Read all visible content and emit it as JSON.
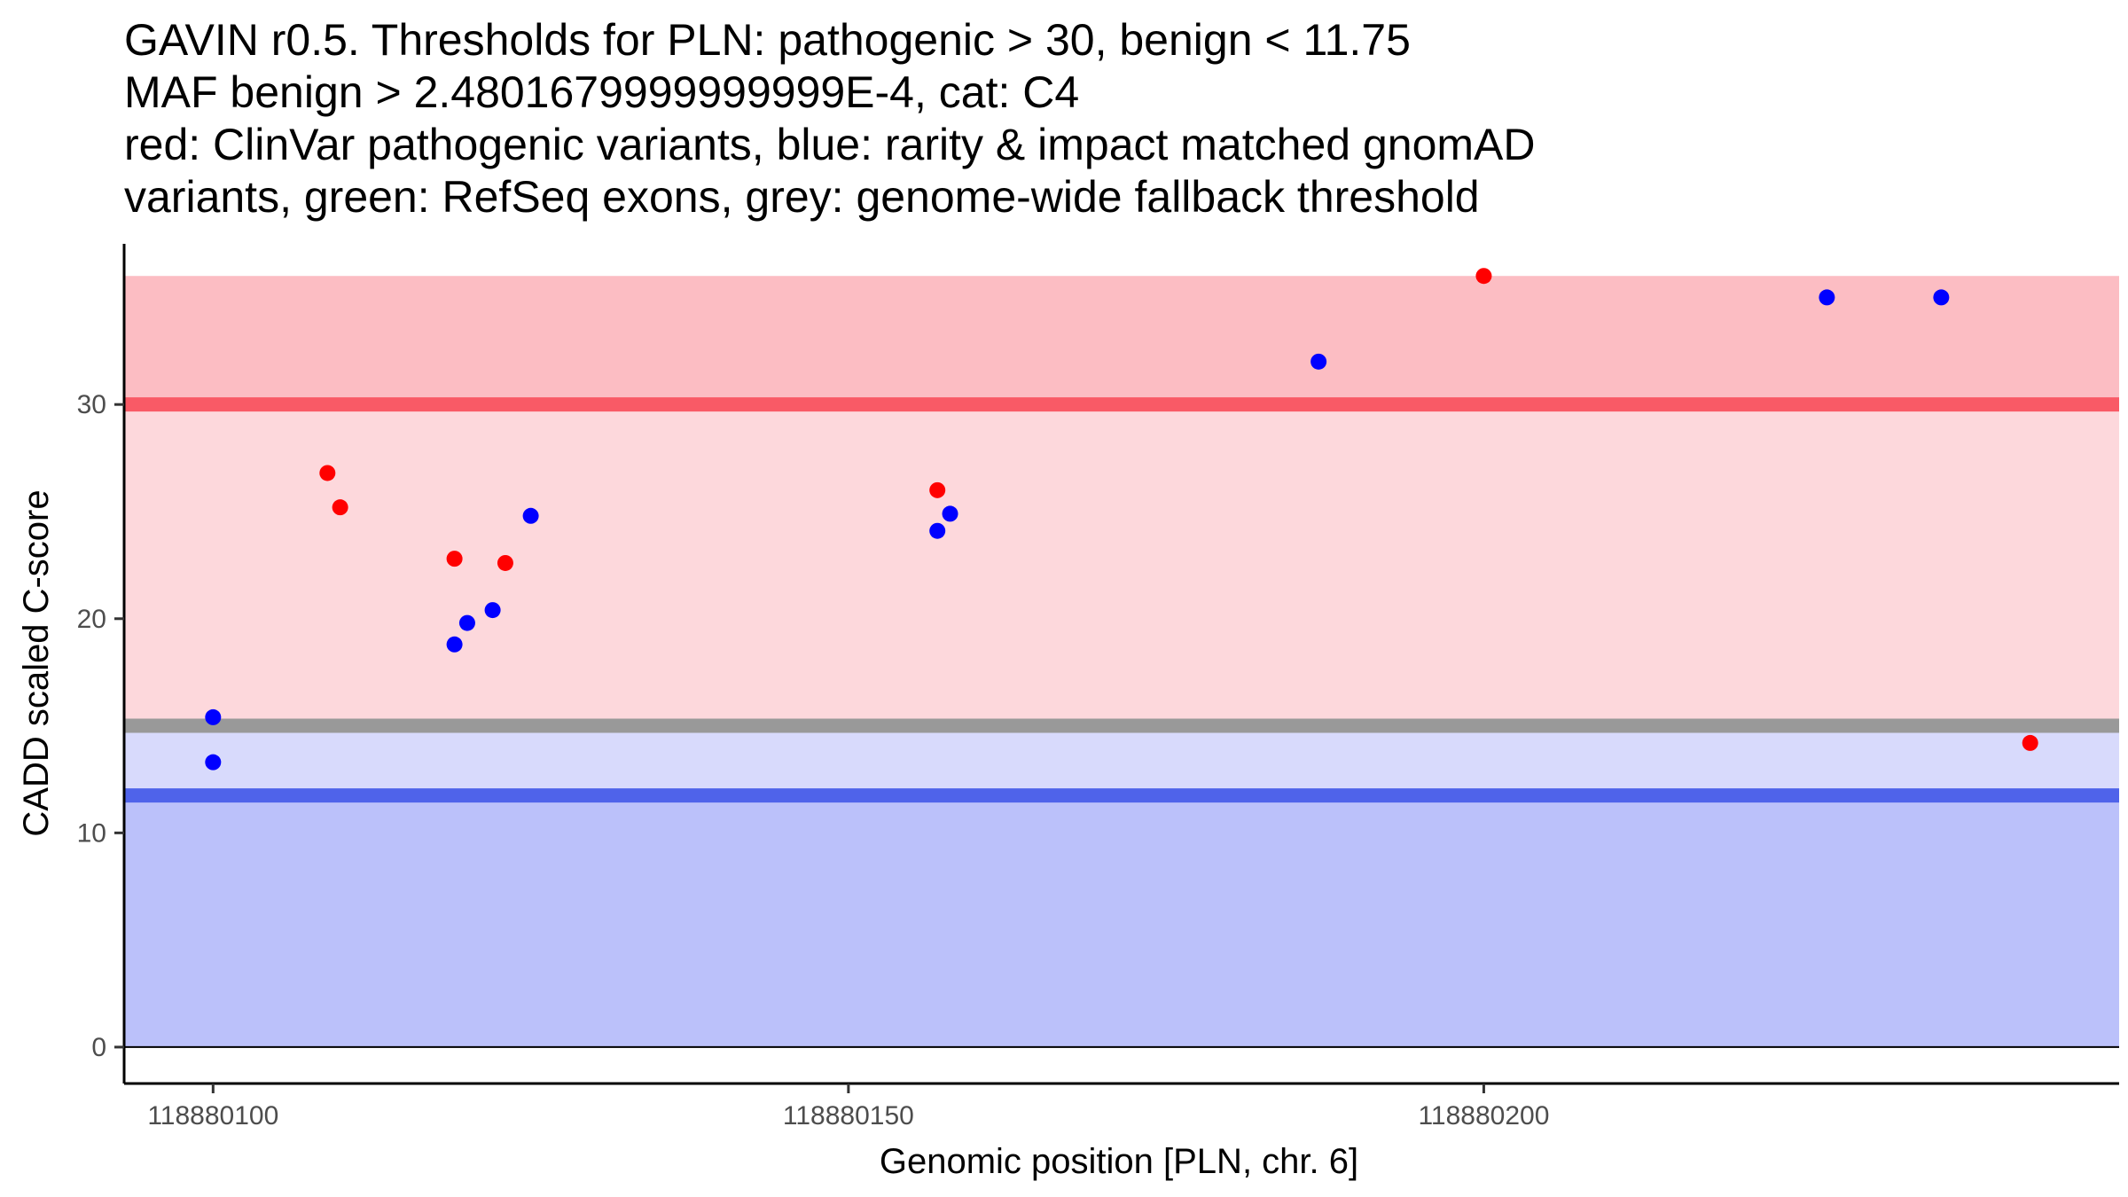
{
  "chart_data": {
    "type": "scatter",
    "title_lines": [
      "GAVIN r0.5. Thresholds for PLN: pathogenic > 30, benign < 11.75",
      "MAF benign > 2.4801679999999999E-4, cat: C4",
      "red: ClinVar pathogenic variants, blue: rarity & impact matched gnomAD",
      "variants, green: RefSeq exons, grey: genome-wide fallback threshold"
    ],
    "xlabel": "Genomic position [PLN, chr. 6]",
    "ylabel": "CADD scaled C-score",
    "xlim": [
      118880093,
      118880250
    ],
    "ylim": [
      -1.7,
      37.5
    ],
    "x_ticks": [
      118880100,
      118880150,
      118880200
    ],
    "y_ticks": [
      0,
      10,
      20,
      30
    ],
    "bands": [
      {
        "name": "pathogenic-region",
        "y0": 30,
        "y1": 36,
        "color": "#fcbdc3"
      },
      {
        "name": "grey-to-pathogenic-region",
        "y0": 15,
        "y1": 30,
        "color": "#fdd8dc"
      },
      {
        "name": "benign-to-grey-region",
        "y0": 11.75,
        "y1": 15,
        "color": "#d8dafc"
      },
      {
        "name": "benign-region",
        "y0": 0,
        "y1": 11.75,
        "color": "#bbc1fa"
      }
    ],
    "threshold_lines": [
      {
        "name": "pathogenic-threshold-line",
        "y": 30.0,
        "color": "#f95a66"
      },
      {
        "name": "fallback-threshold-line",
        "y": 15.0,
        "color": "#999999"
      },
      {
        "name": "benign-threshold-line",
        "y": 11.75,
        "color": "#4f63ea"
      }
    ],
    "series": [
      {
        "name": "ClinVar pathogenic variants",
        "color": "#ff0000",
        "points": [
          {
            "x": 118880109,
            "y": 26.8
          },
          {
            "x": 118880110,
            "y": 25.2
          },
          {
            "x": 118880119,
            "y": 22.8
          },
          {
            "x": 118880123,
            "y": 22.6
          },
          {
            "x": 118880157,
            "y": 26.0
          },
          {
            "x": 118880200,
            "y": 36.0
          },
          {
            "x": 118880243,
            "y": 14.2
          }
        ]
      },
      {
        "name": "rarity & impact matched gnomAD variants",
        "color": "#0000ff",
        "points": [
          {
            "x": 118880100,
            "y": 15.4
          },
          {
            "x": 118880100,
            "y": 13.3
          },
          {
            "x": 118880119,
            "y": 18.8
          },
          {
            "x": 118880120,
            "y": 19.8
          },
          {
            "x": 118880122,
            "y": 20.4
          },
          {
            "x": 118880125,
            "y": 24.8
          },
          {
            "x": 118880157,
            "y": 24.1
          },
          {
            "x": 118880158,
            "y": 24.9
          },
          {
            "x": 118880187,
            "y": 32.0
          },
          {
            "x": 118880227,
            "y": 35.0
          },
          {
            "x": 118880236,
            "y": 35.0
          }
        ]
      }
    ]
  }
}
